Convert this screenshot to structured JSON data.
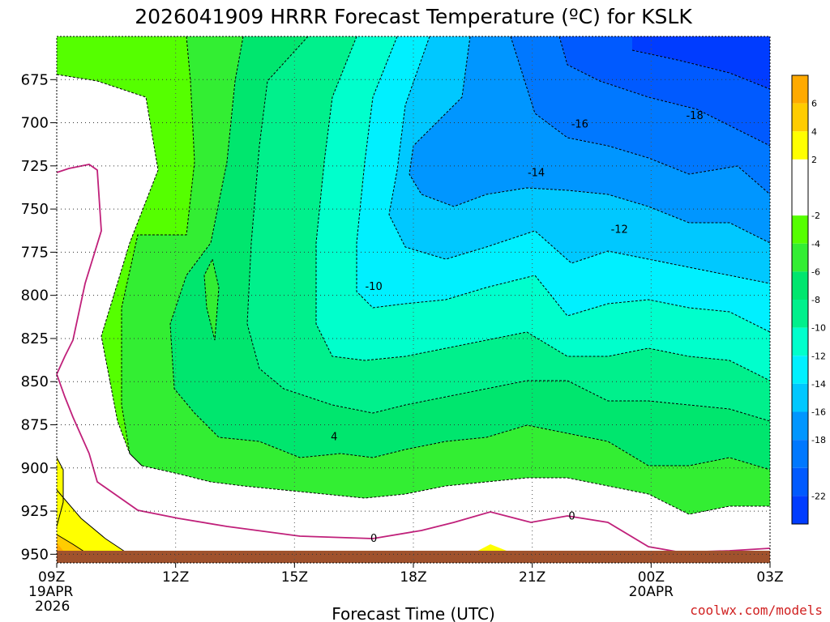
{
  "chart_data": {
    "type": "contour_timeheight",
    "title": "2026041909 HRRR Forecast Temperature (ºC) for KSLK",
    "xlabel": "Forecast Time (UTC)",
    "ylabel": "",
    "y_axis": {
      "unit": "hPa",
      "ticks": [
        "675",
        "700",
        "725",
        "750",
        "775",
        "800",
        "825",
        "850",
        "875",
        "900",
        "925",
        "950"
      ],
      "range": [
        650,
        955
      ],
      "inverted": true
    },
    "x_axis": {
      "range_hours": [
        0,
        18
      ],
      "ticks": [
        {
          "label": "09Z",
          "hour": 0,
          "sub1": "19APR",
          "sub2": "2026"
        },
        {
          "label": "12Z",
          "hour": 3
        },
        {
          "label": "15Z",
          "hour": 6
        },
        {
          "label": "18Z",
          "hour": 9
        },
        {
          "label": "21Z",
          "hour": 12
        },
        {
          "label": "00Z",
          "hour": 15,
          "sub1": "20APR"
        },
        {
          "label": "03Z",
          "hour": 18
        }
      ]
    },
    "contour_labels": [
      {
        "text": "-18",
        "hour": 16.1,
        "p": 696
      },
      {
        "text": "-16",
        "hour": 13.2,
        "p": 701
      },
      {
        "text": "-14",
        "hour": 12.1,
        "p": 729
      },
      {
        "text": "-12",
        "hour": 14.2,
        "p": 762
      },
      {
        "text": "-10",
        "hour": 8.0,
        "p": 795
      },
      {
        "text": "4",
        "hour": 7.0,
        "p": 882
      },
      {
        "text": "0",
        "hour": 8.0,
        "p": 941
      },
      {
        "text": "0",
        "hour": 13.0,
        "p": 928
      }
    ],
    "colorbar": {
      "labels": [
        "6",
        "4",
        "2",
        "-2",
        "-4",
        "-6",
        "-8",
        "-10",
        "-12",
        "-14",
        "-16",
        "-18",
        "-22"
      ],
      "bands": [
        {
          "lo": 6,
          "hi": 8,
          "color": "#ffaa00"
        },
        {
          "lo": 4,
          "hi": 6,
          "color": "#ffcc00"
        },
        {
          "lo": 2,
          "hi": 4,
          "color": "#ffff00"
        },
        {
          "lo": -2,
          "hi": 2,
          "color": "#ffffff"
        },
        {
          "lo": -4,
          "hi": -2,
          "color": "#55ff00"
        },
        {
          "lo": -6,
          "hi": -4,
          "color": "#33ee33"
        },
        {
          "lo": -8,
          "hi": -6,
          "color": "#00e66e"
        },
        {
          "lo": -10,
          "hi": -8,
          "color": "#00f08c"
        },
        {
          "lo": -12,
          "hi": -10,
          "color": "#00ffcc"
        },
        {
          "lo": -14,
          "hi": -12,
          "color": "#00f0ff"
        },
        {
          "lo": -16,
          "hi": -14,
          "color": "#00c8ff"
        },
        {
          "lo": -18,
          "hi": -16,
          "color": "#0096ff"
        },
        {
          "lo": -20,
          "hi": -18,
          "color": "#0078ff"
        },
        {
          "lo": -22,
          "hi": -20,
          "color": "#005aff"
        },
        {
          "lo": -24,
          "hi": -22,
          "color": "#003cff"
        }
      ]
    },
    "ground_color": "#a0522d",
    "freezing_line_color": "#c0207a"
  },
  "credit": "coolwx.com/models"
}
